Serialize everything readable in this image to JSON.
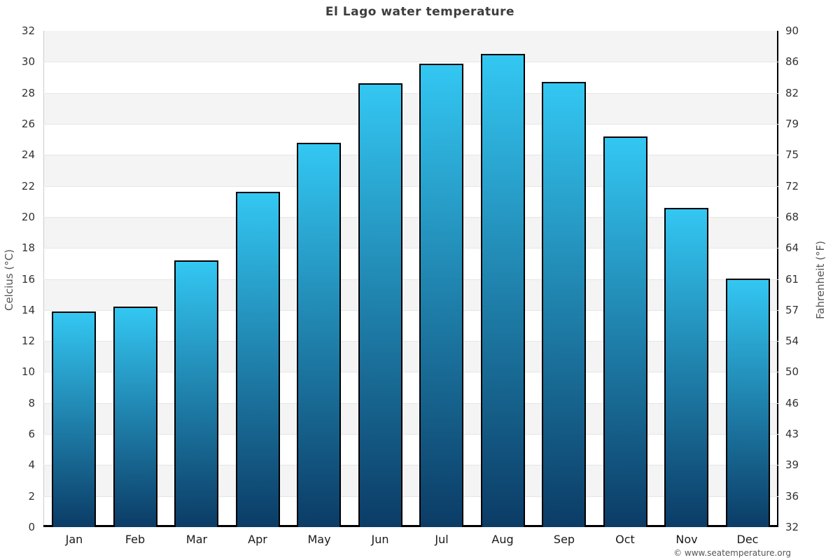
{
  "title": "El Lago water temperature",
  "watermark": "© www.seatemperature.org",
  "colors": {
    "bar_gradient_top": "#33c7f2",
    "bar_gradient_bottom": "#0b3c66",
    "bar_border": "#000000",
    "band_fill": "#f4f4f4",
    "gridline": "#e6e6e6",
    "title_text": "#3d3d3d",
    "tick_text": "#333333"
  },
  "chart_data": {
    "type": "bar",
    "title": "El Lago water temperature",
    "categories": [
      "Jan",
      "Feb",
      "Mar",
      "Apr",
      "May",
      "Jun",
      "Jul",
      "Aug",
      "Sep",
      "Oct",
      "Nov",
      "Dec"
    ],
    "values": [
      13.9,
      14.2,
      17.2,
      21.6,
      24.8,
      28.6,
      29.9,
      30.5,
      28.7,
      25.2,
      20.6,
      16.0
    ],
    "unit": "°C",
    "ylabel_left": "Celcius (°C)",
    "ylabel_right": "Fahrenheit (°F)",
    "ylim": [
      0,
      32
    ],
    "ytick_step": 2,
    "yticks_left": [
      "0",
      "2",
      "4",
      "6",
      "8",
      "10",
      "12",
      "14",
      "16",
      "18",
      "20",
      "22",
      "24",
      "26",
      "28",
      "30",
      "32"
    ],
    "yticks_right": [
      "32",
      "36",
      "39",
      "43",
      "46",
      "50",
      "54",
      "57",
      "61",
      "64",
      "68",
      "72",
      "75",
      "79",
      "82",
      "86",
      "90"
    ],
    "grid": true,
    "legend_position": "none",
    "alternating_bands": true
  }
}
